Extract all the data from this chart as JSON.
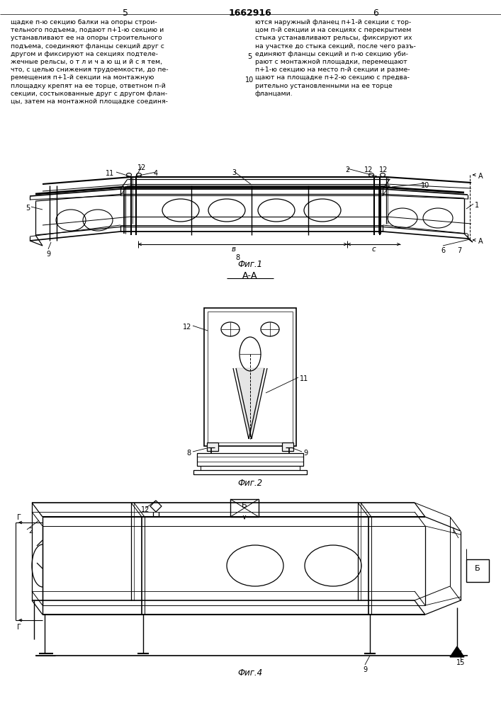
{
  "bg_color": "#ffffff",
  "patent_number": "1662916",
  "left_text_lines": [
    "щадке п-ю секцию балки на опоры строи-",
    "тельного подъема, подают п+1-ю секцию и",
    "устанавливают ее на опоры строительного",
    "подъема, соединяют фланцы секций друг с",
    "другом и фиксируют на секциях подтеле-",
    "жечные рельсы, о т л и ч а ю щ и й с я тем,",
    "что, с целью снижения трудоемкости, до пе-",
    "ремещения п+1-й секции на монтажную",
    "площадку крепят на ее торце, ответном п-й",
    "секции, состыкованные друг с другом флан-",
    "цы, затем на монтажной площадке соединя-"
  ],
  "right_text_lines": [
    "ются наружный фланец п+1-й секции с тор-",
    "цом п-й секции и на секциях с перекрытием",
    "стыка устанавливают рельсы, фиксируют их",
    "на участке до стыка секций, после чего разъ-",
    "единяют фланцы секций и п-ю секцию уби-",
    "рают с монтажной площадки, перемещают",
    "п+1-ю секцию на место п-й секции и разме-",
    "щают на площадке п+2-ю секцию с предва-",
    "рительно установленными на ее торце",
    "фланцами."
  ],
  "fig1_label": "Фиг.1",
  "fig2_label": "Фиг.2",
  "fig4_label": "Фиг.4",
  "aa_label": "А-А"
}
